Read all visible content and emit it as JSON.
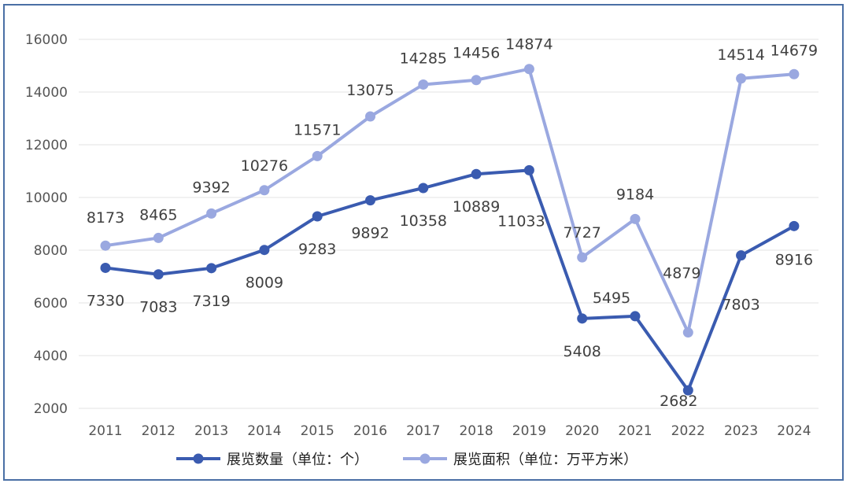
{
  "chart_data": {
    "type": "line",
    "categories": [
      "2011",
      "2012",
      "2013",
      "2014",
      "2015",
      "2016",
      "2017",
      "2018",
      "2019",
      "2020",
      "2021",
      "2022",
      "2023",
      "2024"
    ],
    "series": [
      {
        "name": "展览数量（单位：个）",
        "color": "#3a5bb0",
        "values": [
          7330,
          7083,
          7319,
          8009,
          9283,
          9892,
          10358,
          10889,
          11033,
          5408,
          5495,
          2682,
          7803,
          8916
        ]
      },
      {
        "name": "展览面积（单位：万平方米）",
        "color": "#9aa8e0",
        "values": [
          8173,
          8465,
          9392,
          10276,
          11571,
          13075,
          14285,
          14456,
          14874,
          7727,
          9184,
          4879,
          14514,
          14679
        ]
      }
    ],
    "y_ticks": [
      "2000",
      "4000",
      "6000",
      "8000",
      "10000",
      "12000",
      "14000",
      "16000"
    ],
    "ylim": [
      2000,
      16000
    ],
    "grid": true,
    "legend": "bottom-center"
  }
}
